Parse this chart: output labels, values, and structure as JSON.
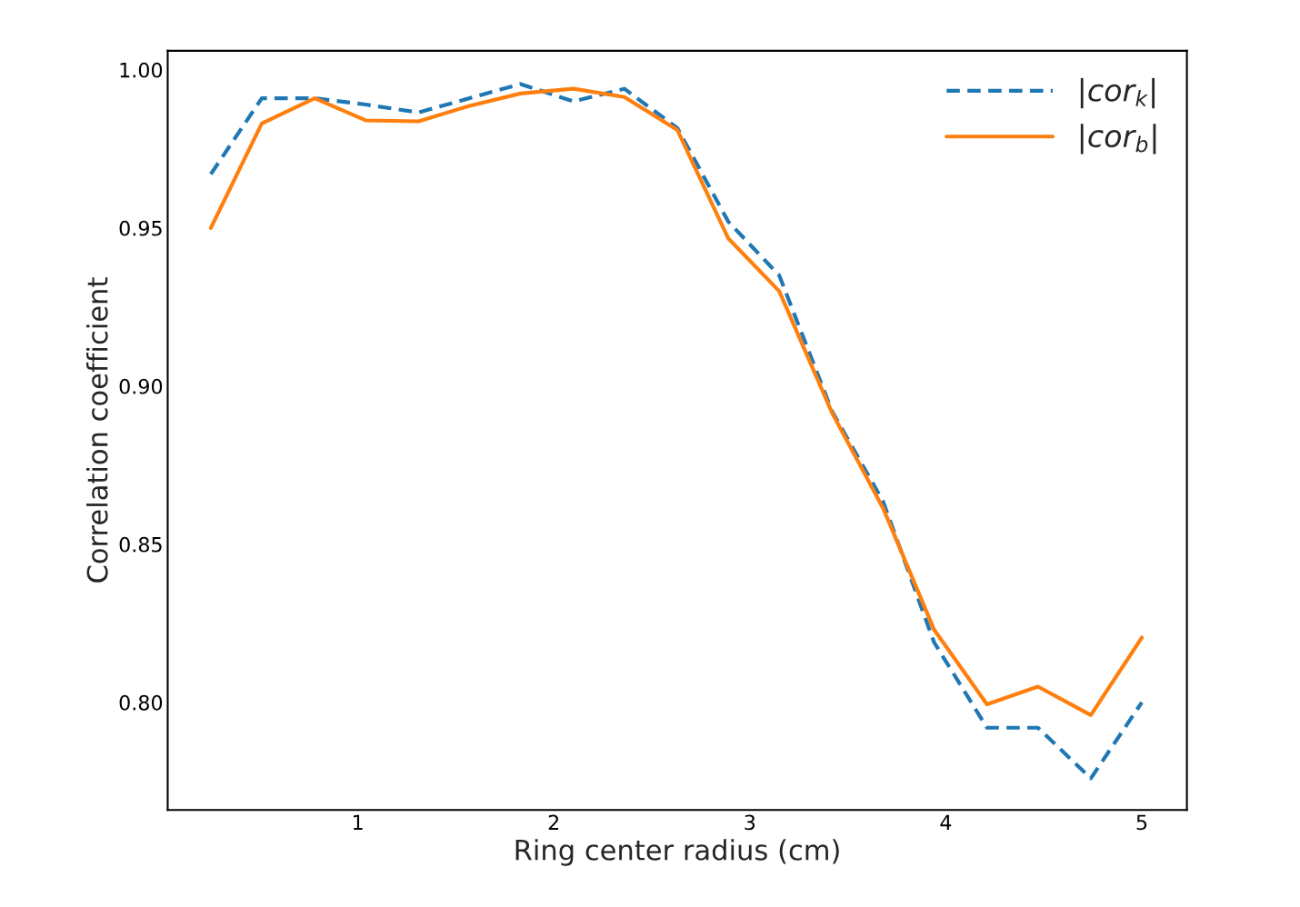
{
  "chart_data": {
    "type": "line",
    "xlabel": "Ring center radius (cm)",
    "ylabel": "Correlation coefficient",
    "x": [
      0.25,
      0.51,
      0.78,
      1.04,
      1.31,
      1.57,
      1.83,
      2.1,
      2.36,
      2.63,
      2.89,
      3.15,
      3.42,
      3.68,
      3.94,
      4.21,
      4.47,
      4.74,
      5.0
    ],
    "series": [
      {
        "name": "|cor$_{k}$|",
        "color": "#1f77b4",
        "line_style": "dashed",
        "values": [
          0.967,
          0.991,
          0.991,
          0.989,
          0.9865,
          0.991,
          0.9955,
          0.99,
          0.994,
          0.9816,
          0.952,
          0.935,
          0.892,
          0.8635,
          0.819,
          0.792,
          0.792,
          0.776,
          0.8
        ]
      },
      {
        "name": "|cor$_{b}$|",
        "color": "#ff7f0e",
        "line_style": "solid",
        "values": [
          0.95,
          0.983,
          0.991,
          0.984,
          0.9837,
          0.9886,
          0.9925,
          0.994,
          0.9914,
          0.981,
          0.9467,
          0.93,
          0.8915,
          0.8614,
          0.823,
          0.7994,
          0.805,
          0.796,
          0.8205
        ]
      }
    ],
    "xlim": [
      0.03,
      5.23
    ],
    "ylim": [
      0.766,
      1.006
    ],
    "xticks": [
      1,
      2,
      3,
      4,
      5
    ],
    "yticks": [
      {
        "value": 0.8,
        "label": "0.80"
      },
      {
        "value": 0.85,
        "label": "0.85"
      },
      {
        "value": 0.9,
        "label": "0.90"
      },
      {
        "value": 0.95,
        "label": "0.95"
      },
      {
        "value": 1.0,
        "label": "1.00"
      }
    ],
    "grid": false,
    "legend": "top right",
    "marker": "none"
  }
}
